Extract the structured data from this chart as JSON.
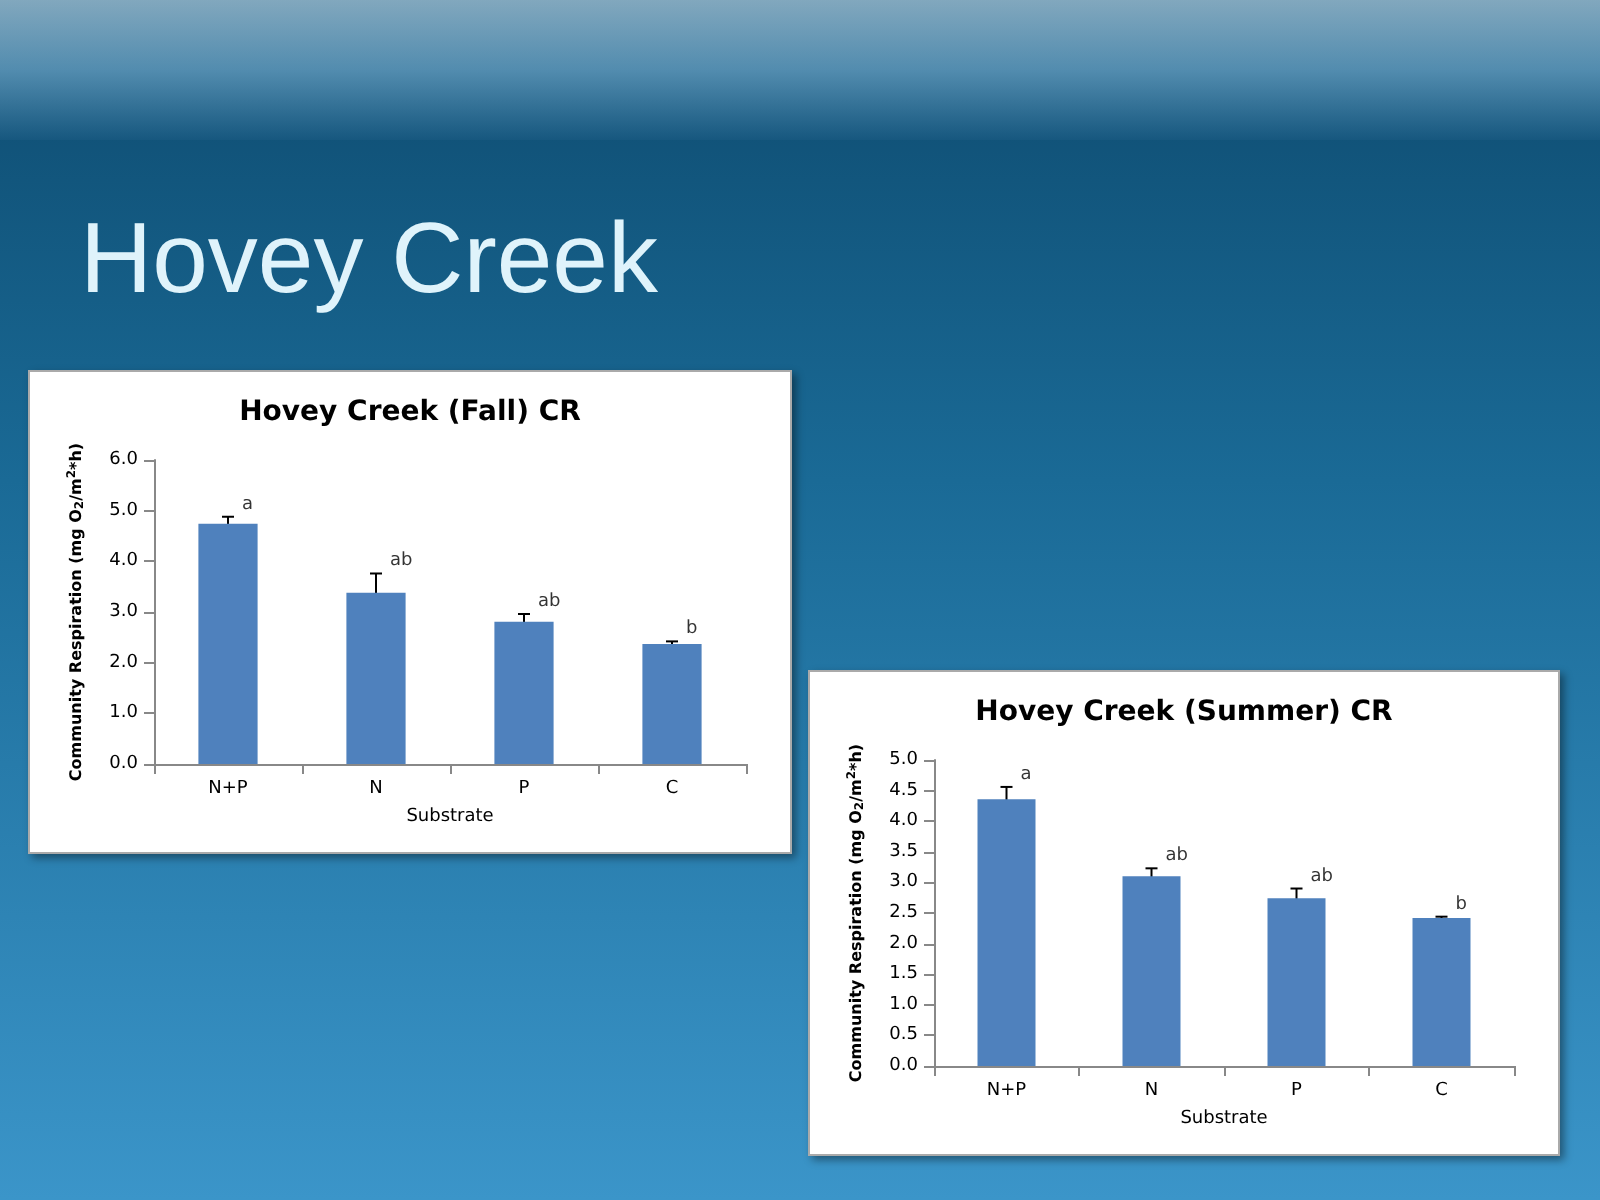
{
  "chart_data": [
    {
      "type": "bar",
      "title": "Hovey Creek (Fall) CR",
      "xlabel": "Substrate",
      "ylabel": "Community Respiration (mg O$_{2}$/m$^{2}$*h)",
      "categories": [
        "N+P",
        "N",
        "P",
        "C"
      ],
      "values": [
        4.74,
        3.38,
        2.81,
        2.37
      ],
      "errors": [
        0.14,
        0.38,
        0.15,
        0.05
      ],
      "color": "#4f81bd",
      "ylim": [
        0,
        6
      ],
      "yticks": [
        {
          "value": 0,
          "label": "0.0"
        },
        {
          "value": 1,
          "label": "1.0"
        },
        {
          "value": 2,
          "label": "2.0"
        },
        {
          "value": 3,
          "label": "3.0"
        },
        {
          "value": 4,
          "label": "4.0"
        },
        {
          "value": 5,
          "label": "5.0"
        },
        {
          "value": 6,
          "label": "6.0"
        }
      ],
      "grid": false,
      "annotations": [
        "Hovey Creek",
        {
          "text": "a",
          "x": "N+P",
          "y": 4.88
        },
        {
          "text": "ab",
          "x": "N",
          "y": 3.76
        },
        {
          "text": "ab",
          "x": "P",
          "y": 2.96
        },
        {
          "text": "b",
          "x": "C",
          "y": 2.42
        }
      ]
    },
    {
      "type": "bar",
      "title": "Hovey Creek (Summer) CR",
      "xlabel": "Substrate",
      "ylabel": "Community Respiration (mg O$_{2}$/m$^{2}$*h)",
      "categories": [
        "N+P",
        "N",
        "P",
        "C"
      ],
      "values": [
        4.36,
        3.1,
        2.74,
        2.42
      ],
      "errors": [
        0.2,
        0.13,
        0.16,
        0.02
      ],
      "color": "#4f81bd",
      "ylim": [
        0,
        5
      ],
      "yticks": [
        {
          "value": 0,
          "label": "0.0"
        },
        {
          "value": 0.5,
          "label": "0.5"
        },
        {
          "value": 1,
          "label": "1.0"
        },
        {
          "value": 1.5,
          "label": "1.5"
        },
        {
          "value": 2,
          "label": "2.0"
        },
        {
          "value": 2.5,
          "label": "2.5"
        },
        {
          "value": 3,
          "label": "3.0"
        },
        {
          "value": 3.5,
          "label": "3.5"
        },
        {
          "value": 4,
          "label": "4.0"
        },
        {
          "value": 4.5,
          "label": "4.5"
        },
        {
          "value": 5,
          "label": "5.0"
        }
      ],
      "grid": false,
      "annotations": [
        {
          "text": "a",
          "x": "N+P",
          "y": 4.56
        },
        {
          "text": "ab",
          "x": "N",
          "y": 3.23
        },
        {
          "text": "ab",
          "x": "P",
          "y": 2.9
        },
        {
          "text": "b",
          "x": "C",
          "y": 2.44
        }
      ]
    }
  ]
}
